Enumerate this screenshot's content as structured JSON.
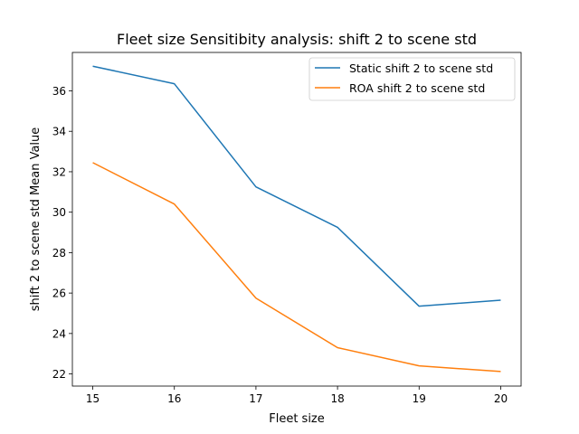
{
  "chart_data": {
    "type": "line",
    "title": "Fleet size Sensitibity analysis: shift 2 to scene std",
    "xlabel": "Fleet size",
    "ylabel": "shift 2 to scene std Mean Value",
    "x": [
      15,
      16,
      17,
      18,
      19,
      20
    ],
    "xlim": [
      14.75,
      20.25
    ],
    "ylim": [
      21.4,
      37.9
    ],
    "xticks": [
      15,
      16,
      17,
      18,
      19,
      20
    ],
    "yticks": [
      22,
      24,
      26,
      28,
      30,
      32,
      34,
      36
    ],
    "grid": false,
    "legend_position": "upper right",
    "series": [
      {
        "name": "Static shift 2 to scene std",
        "color": "#1f77b4",
        "values": [
          37.22,
          36.35,
          31.25,
          29.25,
          25.35,
          25.65
        ]
      },
      {
        "name": "ROA shift 2 to scene std",
        "color": "#ff7f0e",
        "values": [
          32.45,
          30.4,
          25.75,
          23.3,
          22.4,
          22.12
        ]
      }
    ]
  }
}
